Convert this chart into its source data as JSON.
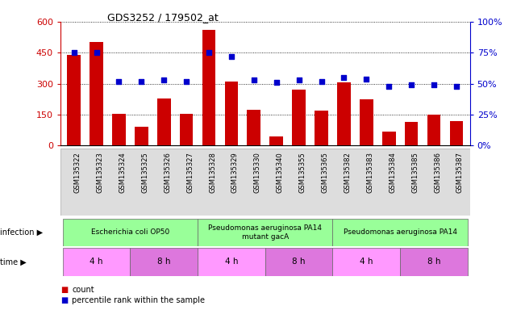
{
  "title": "GDS3252 / 179502_at",
  "samples": [
    "GSM135322",
    "GSM135323",
    "GSM135324",
    "GSM135325",
    "GSM135326",
    "GSM135327",
    "GSM135328",
    "GSM135329",
    "GSM135330",
    "GSM135340",
    "GSM135355",
    "GSM135365",
    "GSM135382",
    "GSM135383",
    "GSM135384",
    "GSM135385",
    "GSM135386",
    "GSM135387"
  ],
  "counts": [
    440,
    500,
    155,
    90,
    230,
    155,
    560,
    310,
    175,
    45,
    270,
    170,
    305,
    225,
    70,
    115,
    150,
    120
  ],
  "percentiles": [
    75,
    75,
    52,
    52,
    53,
    52,
    75,
    72,
    53,
    51,
    53,
    52,
    55,
    54,
    48,
    49,
    49,
    48
  ],
  "bar_color": "#cc0000",
  "dot_color": "#0000cc",
  "ylim_left": [
    0,
    600
  ],
  "ylim_right": [
    0,
    100
  ],
  "yticks_left": [
    0,
    150,
    300,
    450,
    600
  ],
  "yticks_right": [
    0,
    25,
    50,
    75,
    100
  ],
  "ytick_labels_right": [
    "0%",
    "25%",
    "50%",
    "75%",
    "100%"
  ],
  "infection_groups": [
    {
      "label": "Escherichia coli OP50",
      "start": 0,
      "end": 6,
      "color": "#99ff99"
    },
    {
      "label": "Pseudomonas aeruginosa PA14\nmutant gacA",
      "start": 6,
      "end": 12,
      "color": "#99ff99"
    },
    {
      "label": "Pseudomonas aeruginosa PA14",
      "start": 12,
      "end": 18,
      "color": "#99ff99"
    }
  ],
  "time_groups": [
    {
      "label": "4 h",
      "start": 0,
      "end": 3,
      "color": "#ff99ff"
    },
    {
      "label": "8 h",
      "start": 3,
      "end": 6,
      "color": "#dd77dd"
    },
    {
      "label": "4 h",
      "start": 6,
      "end": 9,
      "color": "#ff99ff"
    },
    {
      "label": "8 h",
      "start": 9,
      "end": 12,
      "color": "#dd77dd"
    },
    {
      "label": "4 h",
      "start": 12,
      "end": 15,
      "color": "#ff99ff"
    },
    {
      "label": "8 h",
      "start": 15,
      "end": 18,
      "color": "#dd77dd"
    }
  ],
  "infection_label": "infection",
  "time_label": "time",
  "legend_count_label": "count",
  "legend_pct_label": "percentile rank within the sample",
  "bg_color": "#ffffff",
  "tick_label_color_left": "#cc0000",
  "tick_label_color_right": "#0000cc",
  "gray_bg": "#dddddd"
}
